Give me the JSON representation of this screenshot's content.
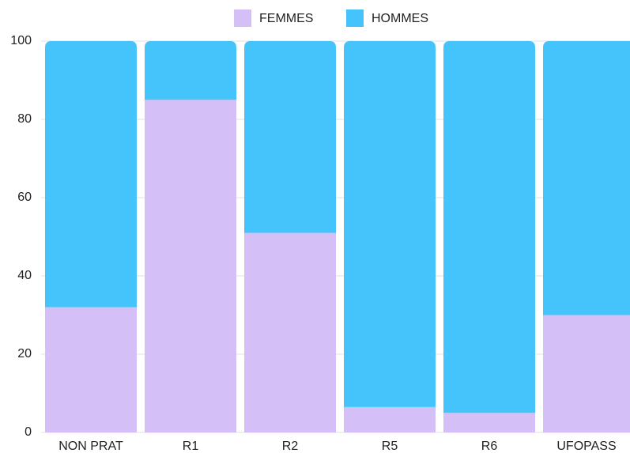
{
  "chart_data": {
    "type": "stacked_bar",
    "categories": [
      "NON PRAT",
      "R1",
      "R2",
      "R5",
      "R6",
      "UFOPASS"
    ],
    "series": [
      {
        "name": "FEMMES",
        "color": "#d4bff7",
        "values": [
          32,
          85,
          51,
          6.5,
          5,
          30
        ]
      },
      {
        "name": "HOMMES",
        "color": "#45c4fc",
        "values": [
          68,
          15,
          49,
          93.5,
          95,
          70
        ]
      }
    ],
    "ylim": [
      0,
      100
    ],
    "yticks": [
      0,
      20,
      40,
      60,
      80,
      100
    ],
    "grid": true,
    "legend": "top"
  }
}
